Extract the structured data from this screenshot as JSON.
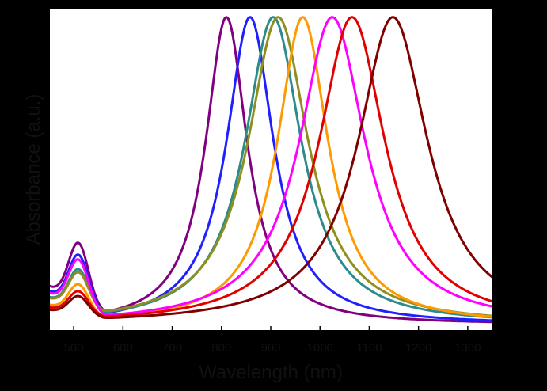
{
  "chart_data": {
    "type": "line",
    "title": "",
    "xlabel": "Wavelength (nm)",
    "ylabel": "Absorbance (a.u.)",
    "xlim": [
      450,
      1350
    ],
    "ylim": [
      0,
      1.05
    ],
    "xticks": [
      500,
      600,
      700,
      800,
      900,
      1000,
      1100,
      1200,
      1300
    ],
    "xtick_labels": [
      "500",
      "600",
      "700",
      "800",
      "900",
      "1000",
      "1100",
      "1200",
      "1300"
    ],
    "y_tick_labels_shown": false,
    "grid": false,
    "legend": "none",
    "series": [
      {
        "color": "#800080",
        "peak_nm": 810,
        "fwhm_nm": 110,
        "peak_abs": 1.0,
        "visible_band_abs": 0.19,
        "baseline_abs": 0.02
      },
      {
        "color": "#1f1fff",
        "peak_nm": 858,
        "fwhm_nm": 125,
        "peak_abs": 1.0,
        "visible_band_abs": 0.16,
        "baseline_abs": 0.02
      },
      {
        "color": "#2e8b8b",
        "peak_nm": 905,
        "fwhm_nm": 150,
        "peak_abs": 1.0,
        "visible_band_abs": 0.12,
        "baseline_abs": 0.02
      },
      {
        "color": "#8f8f1f",
        "peak_nm": 915,
        "fwhm_nm": 160,
        "peak_abs": 1.0,
        "visible_band_abs": 0.11,
        "baseline_abs": 0.02
      },
      {
        "color": "#ff9900",
        "peak_nm": 965,
        "fwhm_nm": 135,
        "peak_abs": 1.0,
        "visible_band_abs": 0.09,
        "baseline_abs": 0.02
      },
      {
        "color": "#ff00ff",
        "peak_nm": 1025,
        "fwhm_nm": 175,
        "peak_abs": 1.0,
        "visible_band_abs": 0.15,
        "baseline_abs": 0.02
      },
      {
        "color": "#e00000",
        "peak_nm": 1065,
        "fwhm_nm": 175,
        "peak_abs": 1.0,
        "visible_band_abs": 0.07,
        "baseline_abs": 0.02
      },
      {
        "color": "#800000",
        "peak_nm": 1148,
        "fwhm_nm": 185,
        "peak_abs": 1.0,
        "visible_band_abs": 0.06,
        "baseline_abs": 0.02
      }
    ]
  }
}
